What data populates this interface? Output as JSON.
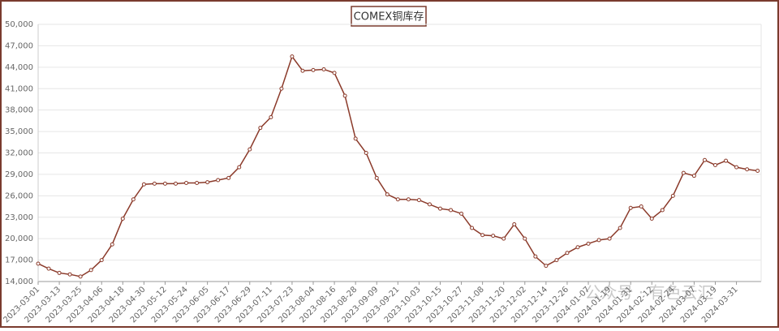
{
  "chart_data": {
    "type": "line",
    "title": "COMEX铜库存",
    "watermark": "公众号 · 有色云汇",
    "x": [
      "2023-03-01",
      "2023-03-07",
      "2023-03-13",
      "2023-03-19",
      "2023-03-25",
      "2023-03-31",
      "2023-04-06",
      "2023-04-12",
      "2023-04-18",
      "2023-04-24",
      "2023-04-30",
      "2023-05-06",
      "2023-05-12",
      "2023-05-18",
      "2023-05-24",
      "2023-05-30",
      "2023-06-05",
      "2023-06-11",
      "2023-06-17",
      "2023-06-23",
      "2023-06-29",
      "2023-07-05",
      "2023-07-11",
      "2023-07-17",
      "2023-07-23",
      "2023-07-29",
      "2023-08-04",
      "2023-08-10",
      "2023-08-16",
      "2023-08-22",
      "2023-08-28",
      "2023-09-03",
      "2023-09-09",
      "2023-09-15",
      "2023-09-21",
      "2023-09-27",
      "2023-10-03",
      "2023-10-09",
      "2023-10-15",
      "2023-10-21",
      "2023-10-27",
      "2023-11-02",
      "2023-11-08",
      "2023-11-14",
      "2023-11-20",
      "2023-11-26",
      "2023-12-02",
      "2023-12-08",
      "2023-12-14",
      "2023-12-20",
      "2023-12-26",
      "2024-01-01",
      "2024-01-07",
      "2024-01-13",
      "2024-01-19",
      "2024-01-25",
      "2024-01-31",
      "2024-02-06",
      "2024-02-12",
      "2024-02-18",
      "2024-02-24",
      "2024-03-01",
      "2024-03-07",
      "2024-03-13",
      "2024-03-19",
      "2024-03-25",
      "2024-03-31",
      "2024-04-06",
      "2024-04-12"
    ],
    "series": [
      {
        "color": "#8b3a2a",
        "values": [
          16500,
          15800,
          15200,
          15000,
          14700,
          15600,
          17000,
          19200,
          22800,
          25500,
          27600,
          27700,
          27700,
          27700,
          27800,
          27800,
          27900,
          28200,
          28500,
          30000,
          32500,
          35500,
          37000,
          41000,
          45500,
          43500,
          43600,
          43700,
          43200,
          40000,
          34000,
          32000,
          28500,
          26200,
          25500,
          25500,
          25400,
          24800,
          24200,
          24000,
          23500,
          21500,
          20500,
          20400,
          20000,
          22000,
          20000,
          17500,
          16200,
          17000,
          18000,
          18800,
          19300,
          19800,
          20000,
          21500,
          24300,
          24500,
          22800,
          24000,
          26000,
          29200,
          28800,
          31000,
          30300,
          30900,
          30000,
          29700,
          29500
        ]
      }
    ],
    "xlim": [
      "2023-03-01",
      "2024-04-14"
    ],
    "xticks": [
      "2023-03-01",
      "2023-03-13",
      "2023-03-25",
      "2023-04-06",
      "2023-04-18",
      "2023-04-30",
      "2023-05-12",
      "2023-05-24",
      "2023-06-05",
      "2023-06-17",
      "2023-06-29",
      "2023-07-11",
      "2023-07-23",
      "2023-08-04",
      "2023-08-16",
      "2023-08-28",
      "2023-09-09",
      "2023-09-21",
      "2023-10-03",
      "2023-10-15",
      "2023-10-27",
      "2023-11-08",
      "2023-11-20",
      "2023-12-02",
      "2023-12-14",
      "2023-12-26",
      "2024-01-07",
      "2024-01-19",
      "2024-01-31",
      "2024-02-12",
      "2024-02-24",
      "2024-03-07",
      "2024-03-19",
      "2024-03-31"
    ],
    "ylim": [
      14000,
      50000
    ],
    "yticks": [
      {
        "value": 14000,
        "label": "14,000"
      },
      {
        "value": 17000,
        "label": "17,000"
      },
      {
        "value": 20000,
        "label": "20,000"
      },
      {
        "value": 23000,
        "label": "23,000"
      },
      {
        "value": 26000,
        "label": "26,000"
      },
      {
        "value": 29000,
        "label": "29,000"
      },
      {
        "value": 32000,
        "label": "32,000"
      },
      {
        "value": 35000,
        "label": "35,000"
      },
      {
        "value": 38000,
        "label": "38,000"
      },
      {
        "value": 41000,
        "label": "41,000"
      },
      {
        "value": 44000,
        "label": "44,000"
      },
      {
        "value": 47000,
        "label": "47,000"
      },
      {
        "value": 50000,
        "label": "50,000"
      }
    ],
    "grid": true
  }
}
